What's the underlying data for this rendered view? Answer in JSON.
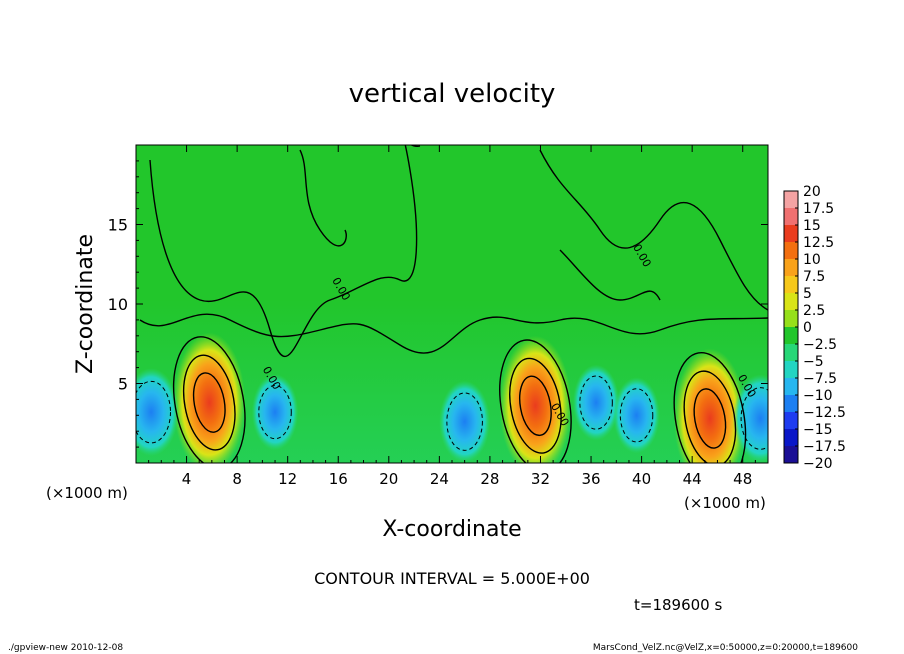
{
  "chart_data": {
    "type": "heatmap",
    "title": "vertical velocity",
    "xlabel": "X-coordinate",
    "ylabel": "Z-coordinate",
    "x_unit_left": "(×1000 m)",
    "x_unit_right": "(×1000 m)",
    "xlim": [
      0,
      50
    ],
    "ylim": [
      0,
      20
    ],
    "x_ticks": [
      4,
      8,
      12,
      16,
      20,
      24,
      28,
      32,
      36,
      40,
      44,
      48
    ],
    "y_ticks": [
      5,
      10,
      15
    ],
    "contour_interval_text": "CONTOUR INTERVAL = 5.000E+00",
    "time_text": "t=189600 s",
    "contour_labels": [
      "0.00",
      "0.00",
      "0.00",
      "0.00",
      "0.00"
    ],
    "colorbar": {
      "levels": [
        20,
        17.5,
        15,
        12.5,
        10,
        7.5,
        5,
        2.5,
        0,
        -2.5,
        -5,
        -7.5,
        -10,
        -12.5,
        -15,
        -17.5,
        -20
      ],
      "level_labels": [
        "20",
        "17.5",
        "15",
        "12.5",
        "10",
        "7.5",
        "5",
        "2.5",
        "0",
        "−2.5",
        "−5",
        "−7.5",
        "−10",
        "−12.5",
        "−15",
        "−17.5",
        "−20"
      ],
      "colors": [
        "#f4a3a3",
        "#f07070",
        "#ea3c1e",
        "#f36f10",
        "#f9a21a",
        "#f6c81b",
        "#d9e417",
        "#96e01a",
        "#22c62b",
        "#27d777",
        "#22d5c2",
        "#27b6ef",
        "#1c7ff2",
        "#1e3cf0",
        "#0a17c8",
        "#1b0f95",
        "#6b1ab0"
      ]
    },
    "features": [
      {
        "kind": "updraft",
        "x": 5.8,
        "z": 3.8,
        "peak": 14
      },
      {
        "kind": "updraft",
        "x": 31.6,
        "z": 3.6,
        "peak": 14
      },
      {
        "kind": "updraft",
        "x": 45.4,
        "z": 2.8,
        "peak": 13
      },
      {
        "kind": "downdraft",
        "x": 1.2,
        "z": 3.2,
        "peak": -8
      },
      {
        "kind": "downdraft",
        "x": 11.0,
        "z": 3.2,
        "peak": -6
      },
      {
        "kind": "downdraft",
        "x": 26.0,
        "z": 2.6,
        "peak": -7
      },
      {
        "kind": "downdraft",
        "x": 36.4,
        "z": 3.8,
        "peak": -6
      },
      {
        "kind": "downdraft",
        "x": 39.6,
        "z": 3.0,
        "peak": -6
      },
      {
        "kind": "downdraft",
        "x": 49.4,
        "z": 2.8,
        "peak": -8
      }
    ],
    "grid": false,
    "legend": "colorbar-right"
  },
  "footer": {
    "left": "./gpview-new  2010-12-08",
    "right": "MarsCond_VelZ.nc@VelZ,x=0:50000,z=0:20000,t=189600"
  }
}
